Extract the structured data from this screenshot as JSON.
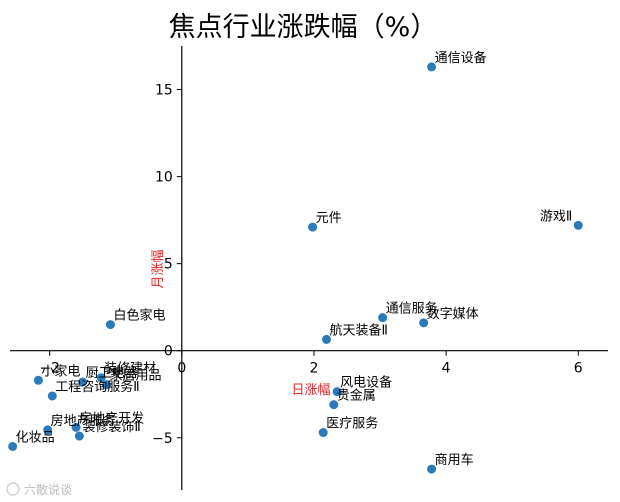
{
  "chart_data": {
    "type": "scatter",
    "title": "焦点行业涨跌幅（%）",
    "xlabel": "日涨幅",
    "ylabel": "月涨幅",
    "xlim": [
      -2.6,
      6.45
    ],
    "ylim": [
      -8.0,
      17.5
    ],
    "x_ticks": [
      -2,
      0,
      2,
      4,
      6
    ],
    "y_ticks": [
      -5,
      0,
      5,
      10,
      15
    ],
    "x_tick_labels": [
      "−2",
      "0",
      "2",
      "4",
      "6"
    ],
    "y_tick_labels": [
      "−5",
      "0",
      "5",
      "10",
      "15"
    ],
    "marker_color": "#2b7bba",
    "grid": false,
    "points": [
      {
        "label": "通信设备",
        "x": 3.78,
        "y": 16.3
      },
      {
        "label": "游戏Ⅱ",
        "x": 6.0,
        "y": 7.2
      },
      {
        "label": "元件",
        "x": 1.98,
        "y": 7.1
      },
      {
        "label": "通信服务",
        "x": 3.04,
        "y": 1.9
      },
      {
        "label": "数字媒体",
        "x": 3.66,
        "y": 1.6
      },
      {
        "label": "航天装备Ⅱ",
        "x": 2.19,
        "y": 0.65
      },
      {
        "label": "白色家电",
        "x": -1.08,
        "y": 1.5
      },
      {
        "label": "小家电",
        "x": -2.17,
        "y": -1.7
      },
      {
        "label": "装修建材",
        "x": -1.22,
        "y": -1.55
      },
      {
        "label": "厨卫电器",
        "x": -1.5,
        "y": -1.8
      },
      {
        "label": "家居用品",
        "x": -1.14,
        "y": -1.95
      },
      {
        "label": "工程咨询服务Ⅱ",
        "x": -1.96,
        "y": -2.6
      },
      {
        "label": "房地产开发",
        "x": -1.6,
        "y": -4.4
      },
      {
        "label": "房地产服务",
        "x": -2.03,
        "y": -4.55
      },
      {
        "label": "装修装饰Ⅱ",
        "x": -1.55,
        "y": -4.9
      },
      {
        "label": "化妆品",
        "x": -2.56,
        "y": -5.5
      },
      {
        "label": "风电设备",
        "x": 2.35,
        "y": -2.35
      },
      {
        "label": "贵金属",
        "x": 2.3,
        "y": -3.1
      },
      {
        "label": "医疗服务",
        "x": 2.14,
        "y": -4.7
      },
      {
        "label": "商用车",
        "x": 3.78,
        "y": -6.8
      }
    ]
  },
  "watermark": "六散说谈"
}
